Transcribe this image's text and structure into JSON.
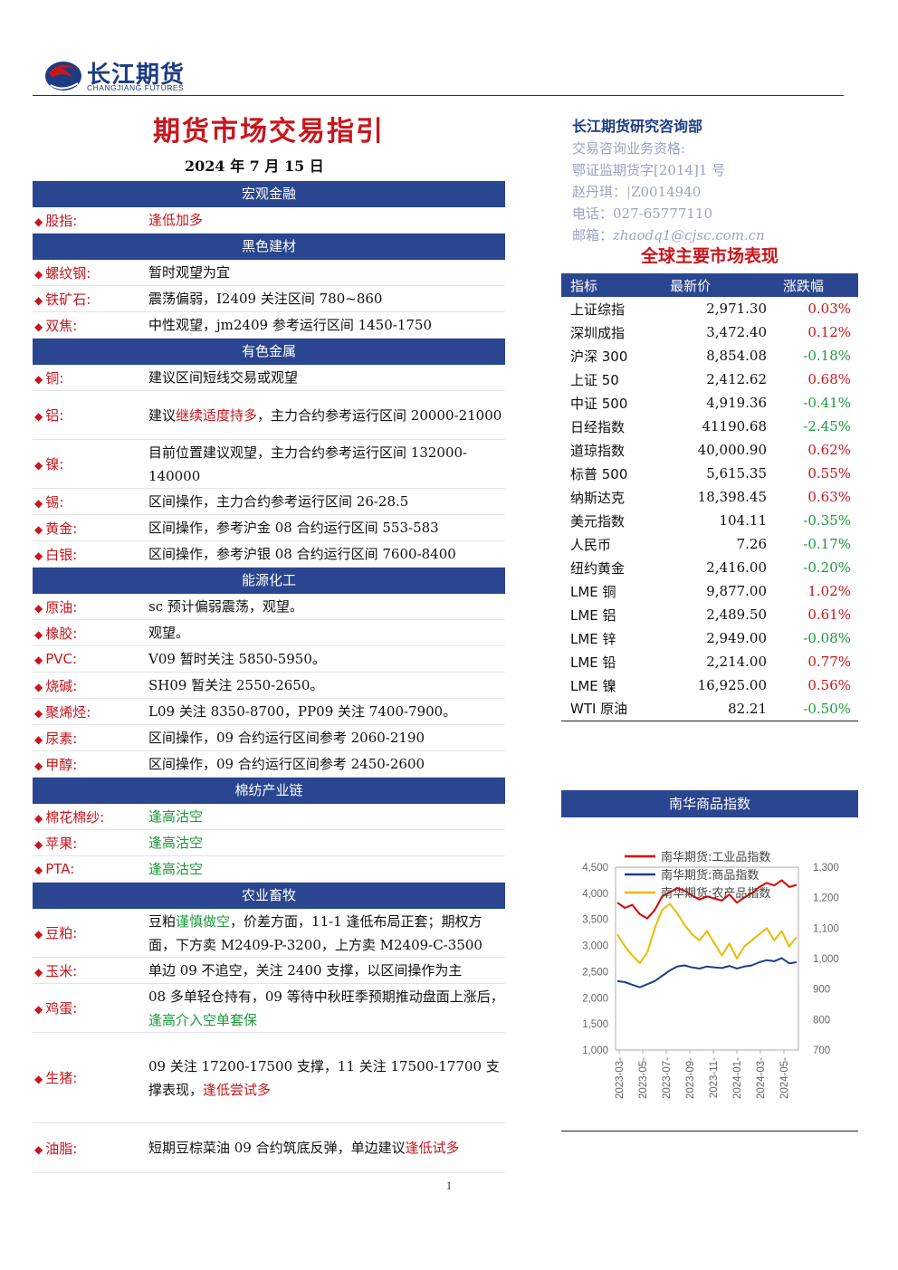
{
  "header": {
    "logo_cn": "长江期货",
    "logo_en": "CHANGJIANG FUTURES"
  },
  "title": "期货市场交易指引",
  "date": "2024 年 7 月 15 日",
  "contact": {
    "dept": "长江期货研究咨询部",
    "qual_label": "交易咨询业务资格:",
    "qual_no": "鄂证监期货字[2014]1 号",
    "analyst": "赵丹琪：",
    "analyst_id": "Z0014940",
    "phone": "电话：027-65777110",
    "email_label": "邮箱：",
    "email": "zhaodq1@cjsc.com.cn"
  },
  "global_title": "全球主要市场表现",
  "sections": [
    {
      "title": "宏观金融",
      "rows": [
        {
          "k": "股指:",
          "parts": [
            {
              "t": "逢低加多",
              "c": "red"
            }
          ]
        }
      ]
    },
    {
      "title": "黑色建材",
      "rows": [
        {
          "k": "螺纹钢:",
          "parts": [
            {
              "t": "暂时观望为宜",
              "c": ""
            }
          ]
        },
        {
          "k": "铁矿石:",
          "parts": [
            {
              "t": "震荡偏弱，I2409 关注区间 780~860",
              "c": ""
            }
          ]
        },
        {
          "k": "双焦:",
          "parts": [
            {
              "t": "中性观望，jm2409 参考运行区间 1450-1750",
              "c": ""
            }
          ]
        }
      ]
    },
    {
      "title": "有色金属",
      "rows": [
        {
          "k": "铜:",
          "parts": [
            {
              "t": "建议区间短线交易或观望",
              "c": ""
            }
          ]
        },
        {
          "k": "铝:",
          "parts": [
            {
              "t": "建议",
              "c": ""
            },
            {
              "t": "继续适度持多",
              "c": "red"
            },
            {
              "t": "，主力合约参考运行区间 20000-21000",
              "c": ""
            }
          ]
        },
        {
          "k": "镍:",
          "parts": [
            {
              "t": "目前位置建议观望，主力合约参考运行区间 132000-140000",
              "c": ""
            }
          ]
        },
        {
          "k": "锡:",
          "parts": [
            {
              "t": "区间操作，主力合约参考运行区间 26-28.5",
              "c": ""
            }
          ]
        },
        {
          "k": "黄金:",
          "parts": [
            {
              "t": "区间操作，参考沪金 08 合约运行区间 553-583",
              "c": ""
            }
          ]
        },
        {
          "k": "白银:",
          "parts": [
            {
              "t": "区间操作，参考沪银 08 合约运行区间 7600-8400",
              "c": ""
            }
          ]
        }
      ]
    },
    {
      "title": "能源化工",
      "rows": [
        {
          "k": "原油:",
          "parts": [
            {
              "t": "sc 预计偏弱震荡，观望。",
              "c": ""
            }
          ]
        },
        {
          "k": "橡胶:",
          "parts": [
            {
              "t": "观望。",
              "c": ""
            }
          ]
        },
        {
          "k": "PVC:",
          "parts": [
            {
              "t": "V09 暂时关注 5850-5950。",
              "c": ""
            }
          ]
        },
        {
          "k": "烧碱:",
          "parts": [
            {
              "t": "SH09 暂关注 2550-2650。",
              "c": ""
            }
          ]
        },
        {
          "k": "聚烯烃:",
          "parts": [
            {
              "t": "L09 关注 8350-8700，PP09 关注 7400-7900。",
              "c": ""
            }
          ]
        },
        {
          "k": "尿素:",
          "parts": [
            {
              "t": "区间操作，09 合约运行区间参考 2060-2190",
              "c": ""
            }
          ]
        },
        {
          "k": "甲醇:",
          "parts": [
            {
              "t": "区间操作，09 合约运行区间参考 2450-2600",
              "c": ""
            }
          ]
        }
      ]
    },
    {
      "title": "棉纺产业链",
      "rows": [
        {
          "k": "棉花棉纱:",
          "parts": [
            {
              "t": "逢高沽空",
              "c": "green"
            }
          ]
        },
        {
          "k": "苹果:",
          "parts": [
            {
              "t": "逢高沽空",
              "c": "green"
            }
          ]
        },
        {
          "k": "PTA:",
          "parts": [
            {
              "t": "逢高沽空",
              "c": "green"
            }
          ]
        }
      ]
    },
    {
      "title": "农业畜牧",
      "rows": [
        {
          "k": "豆粕:",
          "parts": [
            {
              "t": "豆粕",
              "c": ""
            },
            {
              "t": "谨慎做空",
              "c": "green"
            },
            {
              "t": "，价差方面，11-1 逢低布局正套；期权方面，下方卖 M2409-P-3200，上方卖 M2409-C-3500",
              "c": ""
            }
          ]
        },
        {
          "k": "玉米:",
          "parts": [
            {
              "t": "单边 09 不追空，关注 2400 支撑，以区间操作为主",
              "c": ""
            }
          ]
        },
        {
          "k": "鸡蛋:",
          "parts": [
            {
              "t": "08 多单轻仓持有，09 等待中秋旺季预期推动盘面上涨后，",
              "c": ""
            },
            {
              "t": "逢高介入空单套保",
              "c": "green"
            }
          ]
        },
        {
          "k": "生猪:",
          "parts": [
            {
              "t": "09 关注 17200-17500 支撑，11 关注 17500-17700 支撑表现，",
              "c": ""
            },
            {
              "t": "逢低尝试多",
              "c": "red"
            }
          ]
        },
        {
          "k": "油脂:",
          "parts": [
            {
              "t": "短期豆棕菜油 09 合约筑底反弹，单边建议",
              "c": ""
            },
            {
              "t": "逢低试多",
              "c": "red"
            }
          ]
        }
      ]
    }
  ],
  "market_table": {
    "headers": [
      "指标",
      "最新价",
      "涨跌幅"
    ],
    "rows": [
      {
        "name": "上证综指",
        "price": "2,971.30",
        "chg": "0.03%",
        "dir": "up"
      },
      {
        "name": "深圳成指",
        "price": "3,472.40",
        "chg": "0.12%",
        "dir": "up"
      },
      {
        "name": "沪深 300",
        "price": "8,854.08",
        "chg": "-0.18%",
        "dir": "down"
      },
      {
        "name": "上证 50",
        "price": "2,412.62",
        "chg": "0.68%",
        "dir": "up"
      },
      {
        "name": "中证 500",
        "price": "4,919.36",
        "chg": "-0.41%",
        "dir": "down"
      },
      {
        "name": "日经指数",
        "price": "41190.68",
        "chg": "-2.45%",
        "dir": "down"
      },
      {
        "name": "道琼指数",
        "price": "40,000.90",
        "chg": "0.62%",
        "dir": "up"
      },
      {
        "name": "标普 500",
        "price": "5,615.35",
        "chg": "0.55%",
        "dir": "up"
      },
      {
        "name": "纳斯达克",
        "price": "18,398.45",
        "chg": "0.63%",
        "dir": "up"
      },
      {
        "name": "美元指数",
        "price": "104.11",
        "chg": "-0.35%",
        "dir": "down"
      },
      {
        "name": "人民币",
        "price": "7.26",
        "chg": "-0.17%",
        "dir": "down"
      },
      {
        "name": "纽约黄金",
        "price": "2,416.00",
        "chg": "-0.20%",
        "dir": "down"
      },
      {
        "name": "LME 铜",
        "price": "9,877.00",
        "chg": "1.02%",
        "dir": "up"
      },
      {
        "name": "LME 铝",
        "price": "2,489.50",
        "chg": "0.61%",
        "dir": "up"
      },
      {
        "name": "LME 锌",
        "price": "2,949.00",
        "chg": "-0.08%",
        "dir": "down"
      },
      {
        "name": "LME 铅",
        "price": "2,214.00",
        "chg": "0.77%",
        "dir": "up"
      },
      {
        "name": "LME 镍",
        "price": "16,925.00",
        "chg": "0.56%",
        "dir": "up"
      },
      {
        "name": "WTI 原油",
        "price": "82.21",
        "chg": "-0.50%",
        "dir": "down"
      }
    ]
  },
  "nanhua_title": "南华商品指数",
  "chart_data": {
    "type": "line",
    "x_ticks": [
      "2023-03-",
      "2023-05-",
      "2023-07-",
      "2023-09-",
      "2023-11-",
      "2024-01-",
      "2024-03-",
      "2024-05-"
    ],
    "y_left": {
      "min": 1000,
      "max": 4500,
      "ticks": [
        "1,000",
        "1,500",
        "2,000",
        "2,500",
        "3,000",
        "3,500",
        "4,000",
        "4,500"
      ]
    },
    "y_right": {
      "min": 700,
      "max": 1300,
      "ticks": [
        "700",
        "800",
        "900",
        "1,000",
        "1,100",
        "1,200",
        "1,300"
      ]
    },
    "legend_position": "top",
    "series": [
      {
        "name": "南华期货:工业品指数",
        "color": "#e00000",
        "axis": "left",
        "values": [
          3820,
          3720,
          3780,
          3600,
          3520,
          3680,
          3940,
          4020,
          4100,
          4050,
          3960,
          3880,
          3940,
          3900,
          3860,
          3980,
          3820,
          3920,
          4000,
          4120,
          4200,
          4150,
          4250,
          4120,
          4160
        ]
      },
      {
        "name": "南华期货:商品指数",
        "color": "#1f3f8a",
        "axis": "left",
        "values": [
          2320,
          2300,
          2250,
          2200,
          2260,
          2320,
          2420,
          2520,
          2600,
          2620,
          2580,
          2560,
          2600,
          2580,
          2570,
          2610,
          2560,
          2600,
          2620,
          2680,
          2720,
          2700,
          2760,
          2660,
          2680
        ]
      },
      {
        "name": "南华期货:农产品指数",
        "color": "#f0b800",
        "axis": "right",
        "values": [
          1080,
          1040,
          1010,
          985,
          1020,
          1100,
          1160,
          1180,
          1150,
          1110,
          1080,
          1060,
          1090,
          1050,
          1010,
          1050,
          1000,
          1040,
          1060,
          1080,
          1100,
          1060,
          1090,
          1040,
          1070
        ]
      }
    ]
  },
  "page_number": "1"
}
